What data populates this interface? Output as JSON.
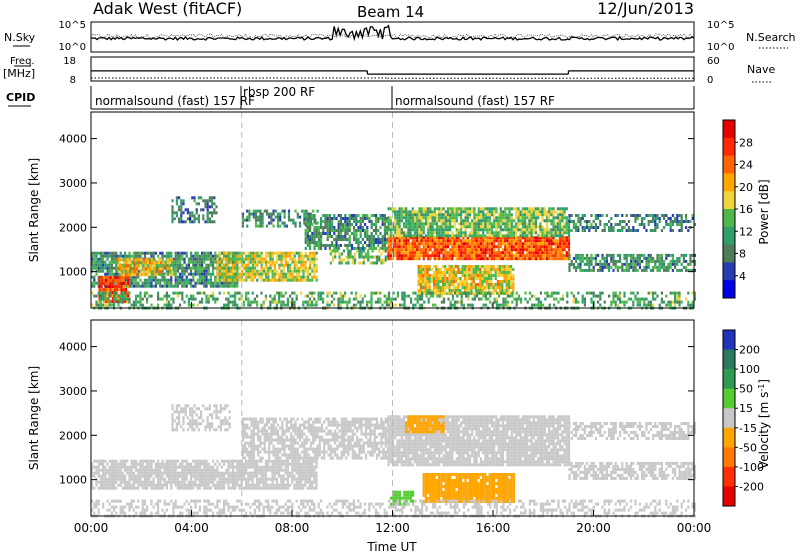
{
  "header": {
    "station": "Adak West (fitACF)",
    "beam": "Beam 14",
    "date": "12/Jun/2013"
  },
  "noise_panel": {
    "left_label": "N.Sky",
    "right_label": "N.Search",
    "left_ticks": [
      "10^5",
      "10^0"
    ],
    "right_ticks": [
      "10^5",
      "10^0"
    ]
  },
  "freq_panel": {
    "left_label_1": "Freq.",
    "left_label_2": "[MHz]",
    "right_label": "Nave",
    "left_ticks": [
      "18",
      "8"
    ],
    "right_ticks": [
      "60",
      "0"
    ],
    "left_tick_values": [
      18,
      8
    ],
    "right_tick_values": [
      60,
      0
    ],
    "freq_steps": [
      {
        "t0": 0,
        "t1": 11.0,
        "v": 12.2
      },
      {
        "t0": 11.0,
        "t1": 19.0,
        "v": 10.3
      },
      {
        "t0": 19.0,
        "t1": 24.0,
        "v": 12.2
      }
    ],
    "nave_steps": [
      {
        "t0": 0,
        "t1": 11.8,
        "v": 3
      },
      {
        "t0": 11.8,
        "t1": 24.0,
        "v": 2
      }
    ]
  },
  "cpid": {
    "label": "CPID",
    "segments": [
      {
        "t": 0.0,
        "name": "normalsound (fast) 157 RF",
        "row": "lower"
      },
      {
        "t": 6.0,
        "name": "rbsp 200 RF",
        "row": "upper"
      },
      {
        "t": 12.0,
        "name": "normalsound (fast) 157 RF",
        "row": "lower"
      }
    ]
  },
  "x_axis": {
    "label": "Time UT",
    "ticks": [
      "00:00",
      "04:00",
      "08:00",
      "12:00",
      "16:00",
      "20:00",
      "00:00"
    ],
    "tick_values": [
      0,
      4,
      8,
      12,
      16,
      20,
      24
    ],
    "range": [
      0,
      24
    ]
  },
  "power_panel": {
    "ylabel": "Slant Range [km]",
    "yticks": [
      "4000",
      "3000",
      "2000",
      "1000"
    ],
    "ytick_values": [
      4000,
      3000,
      2000,
      1000
    ],
    "ylim": [
      180,
      4600
    ],
    "colorbar_label": "Power [dB]",
    "colorbar_ticks": [
      "28",
      "24",
      "20",
      "16",
      "12",
      "8",
      "4"
    ],
    "colorbar_values": [
      28,
      24,
      20,
      16,
      12,
      8,
      4
    ],
    "colorbar_range": [
      0,
      32
    ],
    "colors": [
      "#0000e6",
      "#2a3cb4",
      "#4f7d5a",
      "#2f9e6b",
      "#4fb84a",
      "#f0d23c",
      "#ffa500",
      "#ff6600",
      "#ff2a00",
      "#e60000"
    ]
  },
  "velocity_panel": {
    "ylabel": "Slant Range [km]",
    "yticks": [
      "4000",
      "3000",
      "2000",
      "1000"
    ],
    "ytick_values": [
      4000,
      3000,
      2000,
      1000
    ],
    "ylim": [
      180,
      4600
    ],
    "colorbar_label": "Velocity [m s",
    "colorbar_label_sup": "-1",
    "colorbar_label_close": "]",
    "colorbar_ticks": [
      "200",
      "100",
      "50",
      "15",
      "-15",
      "-50",
      "-100",
      "-200"
    ],
    "colors": [
      "#2233bb",
      "#2a7a62",
      "#2f9a52",
      "#55cc33",
      "#c8c8c8",
      "#ffa500",
      "#ff7a00",
      "#ff3000",
      "#e60000"
    ]
  },
  "chart_data": [
    {
      "type": "heatmap",
      "title": "Power",
      "xlabel": "Time UT",
      "ylabel": "Slant Range [km]",
      "xlim": [
        0,
        24
      ],
      "ylim": [
        180,
        4600
      ],
      "value_unit": "dB",
      "bands": [
        {
          "t0": 0.0,
          "t1": 5.8,
          "r0": 700,
          "r1": 1450,
          "v": 10,
          "d": 0.8
        },
        {
          "t0": 0.3,
          "t1": 1.5,
          "r0": 320,
          "r1": 900,
          "v": 26,
          "d": 0.95
        },
        {
          "t0": 1.0,
          "t1": 3.2,
          "r0": 900,
          "r1": 1300,
          "v": 18,
          "d": 0.85
        },
        {
          "t0": 3.2,
          "t1": 5.0,
          "r0": 2100,
          "r1": 2700,
          "v": 8,
          "d": 0.55
        },
        {
          "t0": 5.0,
          "t1": 9.0,
          "r0": 800,
          "r1": 1450,
          "v": 17,
          "d": 0.85
        },
        {
          "t0": 6.0,
          "t1": 9.0,
          "r0": 2000,
          "r1": 2400,
          "v": 10,
          "d": 0.55
        },
        {
          "t0": 8.5,
          "t1": 11.8,
          "r0": 1500,
          "r1": 2300,
          "v": 10,
          "d": 0.7
        },
        {
          "t0": 9.5,
          "t1": 11.8,
          "r0": 1200,
          "r1": 1500,
          "v": 14,
          "d": 0.6
        },
        {
          "t0": 11.8,
          "t1": 19.0,
          "r0": 1300,
          "r1": 1800,
          "v": 25,
          "d": 0.95
        },
        {
          "t0": 11.8,
          "t1": 19.0,
          "r0": 1800,
          "r1": 2450,
          "v": 14,
          "d": 0.85
        },
        {
          "t0": 13.0,
          "t1": 16.8,
          "r0": 500,
          "r1": 1150,
          "v": 18,
          "d": 0.9
        },
        {
          "t0": 19.0,
          "t1": 24.0,
          "r0": 1900,
          "r1": 2300,
          "v": 9,
          "d": 0.55
        },
        {
          "t0": 19.0,
          "t1": 24.0,
          "r0": 1050,
          "r1": 1400,
          "v": 10,
          "d": 0.7
        },
        {
          "t0": 0.0,
          "t1": 24.0,
          "r0": 200,
          "r1": 550,
          "v": 12,
          "d": 0.45
        }
      ]
    },
    {
      "type": "heatmap",
      "title": "Velocity",
      "xlabel": "Time UT",
      "ylabel": "Slant Range [km]",
      "xlim": [
        0,
        24
      ],
      "ylim": [
        180,
        4600
      ],
      "value_unit": "m s-1",
      "bands": [
        {
          "t0": 0.0,
          "t1": 9.0,
          "r0": 800,
          "r1": 1450,
          "v": 0,
          "d": 0.85
        },
        {
          "t0": 3.2,
          "t1": 5.5,
          "r0": 2100,
          "r1": 2700,
          "v": 0,
          "d": 0.5
        },
        {
          "t0": 6.0,
          "t1": 11.8,
          "r0": 1500,
          "r1": 2400,
          "v": 0,
          "d": 0.7
        },
        {
          "t0": 11.8,
          "t1": 19.0,
          "r0": 1300,
          "r1": 2450,
          "v": 0,
          "d": 0.9
        },
        {
          "t0": 12.5,
          "t1": 14.0,
          "r0": 2050,
          "r1": 2450,
          "v": -60,
          "d": 0.85
        },
        {
          "t0": 13.2,
          "t1": 16.8,
          "r0": 500,
          "r1": 1150,
          "v": -60,
          "d": 0.95
        },
        {
          "t0": 11.9,
          "t1": 12.8,
          "r0": 450,
          "r1": 750,
          "v": 30,
          "d": 0.9
        },
        {
          "t0": 19.0,
          "t1": 24.0,
          "r0": 1900,
          "r1": 2300,
          "v": 0,
          "d": 0.55
        },
        {
          "t0": 19.0,
          "t1": 24.0,
          "r0": 1050,
          "r1": 1400,
          "v": 0,
          "d": 0.7
        },
        {
          "t0": 0.0,
          "t1": 24.0,
          "r0": 200,
          "r1": 550,
          "v": 0,
          "d": 0.45
        }
      ]
    }
  ]
}
